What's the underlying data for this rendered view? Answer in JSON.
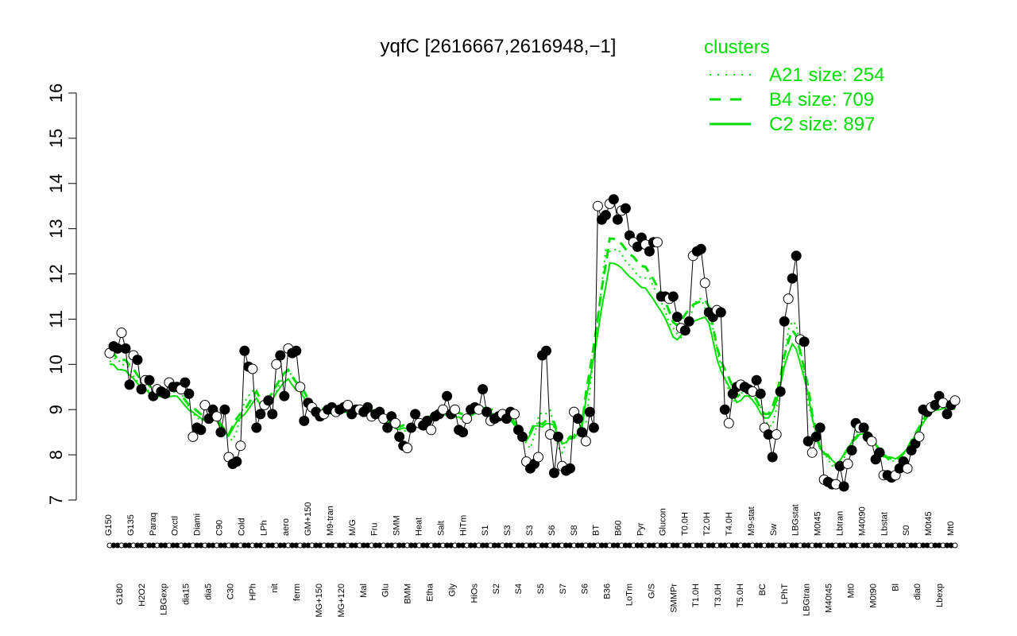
{
  "chart_data": {
    "type": "line",
    "title": "yqfC [2616667,2616948,−1]",
    "xlabel": "",
    "ylabel": "",
    "ylim": [
      7,
      16
    ],
    "yticks": [
      7,
      8,
      9,
      10,
      11,
      12,
      13,
      14,
      15,
      16
    ],
    "grid": false,
    "legend_position": "top-right",
    "legend_title": "clusters",
    "legend": [
      {
        "label": "A21 size: 254",
        "style": "dotted"
      },
      {
        "label": "B4 size: 709",
        "style": "dashed"
      },
      {
        "label": "C2 size: 897",
        "style": "solid"
      }
    ],
    "series_color": "#00e000",
    "x_tick_labels": [
      "G150",
      "G180",
      "G135",
      "H2O2",
      "Paraq",
      "LBGexp",
      "Oxctl",
      "dia15",
      "Diami",
      "dia5",
      "C90",
      "C30",
      "Cold",
      "HPh",
      "LPh",
      "nit",
      "aero",
      "ferm",
      "GM+150",
      "MG+150",
      "M9-tran",
      "MG+120",
      "M/G",
      "Mal",
      "Fru",
      "Glu",
      "SMM",
      "BMM",
      "Heat",
      "Etha",
      "Salt",
      "Gly",
      "HiTm",
      "HiOs",
      "S1",
      "S2",
      "S3",
      "S4",
      "S3",
      "S5",
      "S6",
      "S7",
      "S8",
      "S6",
      "BT",
      "B36",
      "B60",
      "LoTm",
      "Pyr",
      "G/S",
      "Glucon",
      "SMMPr",
      "T0.0H",
      "T1.0H",
      "T2.0H",
      "T3.0H",
      "T4.0H",
      "T5.0H",
      "M9-stat",
      "BC",
      "Sw",
      "LPhT",
      "LBGstat",
      "LBGtran",
      "M0t45",
      "M40t45",
      "Lbtran",
      "Mt0",
      "M40t90",
      "M0t90",
      "Lbstat",
      "Bl",
      "S0",
      "dia0",
      "M0t45",
      "Lbexp",
      "Mt0"
    ],
    "points": [
      10.25,
      10.4,
      10.35,
      10.7,
      10.35,
      9.55,
      10.2,
      10.1,
      9.45,
      9.65,
      9.65,
      9.3,
      9.45,
      9.4,
      9.35,
      9.6,
      9.5,
      9.5,
      9.45,
      9.6,
      9.35,
      8.4,
      8.6,
      8.55,
      9.1,
      8.8,
      9.0,
      8.85,
      8.5,
      9.0,
      7.95,
      7.8,
      7.85,
      8.2,
      10.3,
      9.95,
      9.9,
      8.6,
      8.9,
      9.1,
      9.2,
      8.9,
      10.0,
      10.2,
      9.3,
      10.35,
      10.25,
      10.3,
      9.5,
      8.75,
      9.15,
      9.05,
      8.95,
      8.85,
      8.9,
      9.0,
      9.05,
      8.95,
      9.0,
      9.05,
      9.1,
      8.9,
      9.0,
      9.0,
      8.95,
      9.05,
      8.85,
      8.9,
      8.95,
      8.8,
      8.6,
      8.85,
      8.7,
      8.4,
      8.2,
      8.15,
      8.6,
      8.9,
      8.7,
      8.65,
      8.75,
      8.55,
      8.85,
      8.9,
      9.0,
      9.3,
      8.9,
      9.0,
      8.55,
      8.5,
      8.8,
      9.0,
      9.05,
      9.0,
      9.45,
      8.95,
      8.75,
      8.8,
      8.85,
      8.9,
      8.8,
      8.95,
      8.9,
      8.55,
      8.4,
      7.85,
      7.7,
      7.8,
      7.95,
      10.2,
      10.3,
      8.45,
      7.6,
      8.4,
      7.75,
      7.65,
      7.7,
      8.95,
      8.8,
      8.5,
      8.3,
      8.95,
      8.6,
      13.5,
      13.2,
      13.3,
      13.55,
      13.65,
      13.2,
      13.4,
      13.45,
      12.85,
      12.7,
      12.6,
      12.8,
      12.65,
      12.5,
      12.7,
      12.7,
      11.5,
      11.5,
      11.45,
      11.5,
      11.05,
      10.8,
      10.75,
      10.95,
      12.4,
      12.5,
      12.55,
      11.8,
      11.15,
      11.05,
      11.2,
      11.15,
      9.0,
      8.7,
      9.35,
      9.5,
      9.55,
      9.5,
      9.45,
      9.4,
      9.65,
      9.35,
      8.6,
      8.45,
      7.95,
      8.45,
      9.4,
      10.95,
      11.45,
      11.9,
      12.4,
      10.55,
      10.5,
      8.3,
      8.05,
      8.4,
      8.6,
      7.45,
      7.4,
      7.35,
      7.35,
      7.75,
      7.3,
      7.8,
      8.1,
      8.7,
      8.6,
      8.6,
      8.4,
      8.3,
      7.9,
      8.05,
      7.55,
      7.55,
      7.5,
      7.55,
      7.7,
      7.85,
      7.7,
      8.1,
      8.25,
      8.4,
      9.0,
      8.95,
      9.05,
      9.1,
      9.3,
      9.15,
      8.9,
      9.1,
      9.2
    ],
    "filled_marker_pattern": "mixed"
  }
}
